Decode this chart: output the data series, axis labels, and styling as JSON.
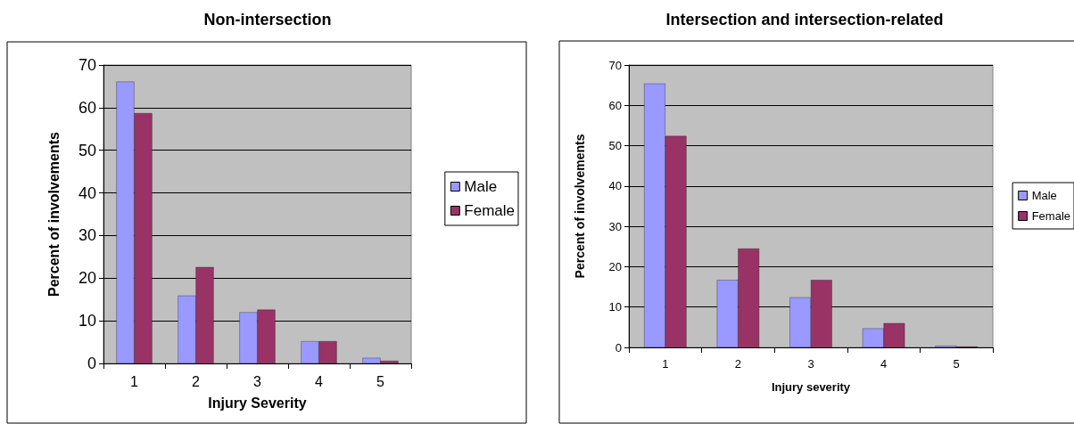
{
  "chart_data": [
    {
      "type": "bar",
      "title": "Non-intersection",
      "xlabel": "Injury Severity",
      "ylabel": "Percent of involvements",
      "categories": [
        "1",
        "2",
        "3",
        "4",
        "5"
      ],
      "series": [
        {
          "name": "Male",
          "color": "#9999ff",
          "values": [
            66.1,
            15.9,
            12.0,
            5.2,
            1.3
          ]
        },
        {
          "name": "Female",
          "color": "#993366",
          "values": [
            58.7,
            22.6,
            12.6,
            5.2,
            0.6
          ]
        }
      ],
      "ylim": [
        0,
        70
      ],
      "yticks": [
        0,
        10,
        20,
        30,
        40,
        50,
        60,
        70
      ],
      "grid": "y",
      "legend": "right"
    },
    {
      "type": "bar",
      "title": "Intersection and intersection-related",
      "xlabel": "Injury severity",
      "ylabel": "Percent of involvements",
      "categories": [
        "1",
        "2",
        "3",
        "4",
        "5"
      ],
      "series": [
        {
          "name": "Male",
          "color": "#9999ff",
          "values": [
            65.4,
            16.7,
            12.4,
            4.7,
            0.4
          ]
        },
        {
          "name": "Female",
          "color": "#993366",
          "values": [
            52.4,
            24.5,
            16.7,
            6.0,
            0.2
          ]
        }
      ],
      "ylim": [
        0,
        70
      ],
      "yticks": [
        0,
        10,
        20,
        30,
        40,
        50,
        60,
        70
      ],
      "grid": "y",
      "legend": "right"
    }
  ]
}
